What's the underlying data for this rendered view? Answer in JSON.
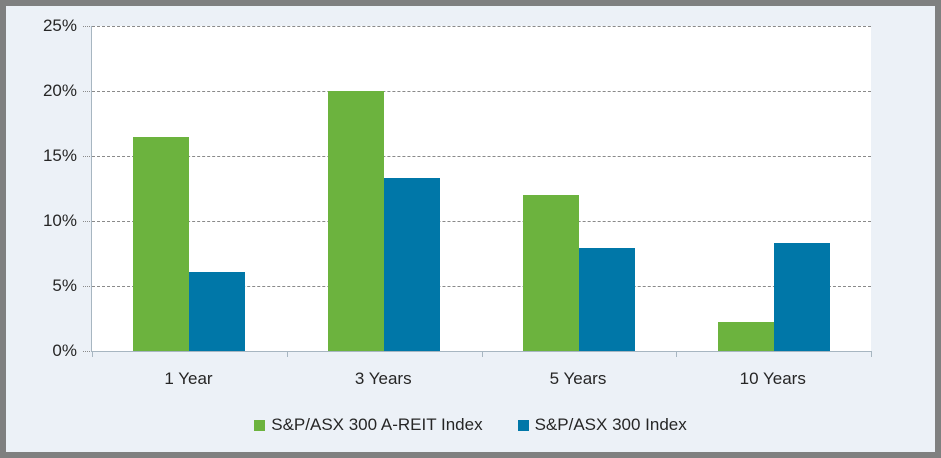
{
  "chart_data": {
    "type": "bar",
    "title": "",
    "categories": [
      "1 Year",
      "3 Years",
      "5 Years",
      "10 Years"
    ],
    "series": [
      {
        "name": "S&P/ASX 300 A-REIT Index",
        "color": "#6CB33E",
        "values": [
          16.5,
          20.0,
          12.0,
          2.2
        ]
      },
      {
        "name": "S&P/ASX 300 Index",
        "color": "#0077A8",
        "values": [
          6.1,
          13.3,
          7.9,
          8.3
        ]
      }
    ],
    "xlabel": "",
    "ylabel": "",
    "ylim": [
      0,
      25
    ],
    "yticks": [
      0,
      5,
      10,
      15,
      20,
      25
    ],
    "ytick_labels": [
      "0%",
      "5%",
      "10%",
      "15%",
      "20%",
      "25%"
    ],
    "grid": "horizontal-dashed",
    "legend_position": "bottom"
  },
  "colors": {
    "background": "#ECF1F7",
    "plot_background": "#FFFFFF",
    "frame_border": "#7F8080",
    "gridline": "#8A8A8A",
    "axis": "#A7B6C1",
    "text": "#262626",
    "series_green": "#6CB33E",
    "series_blue": "#0077A8"
  }
}
